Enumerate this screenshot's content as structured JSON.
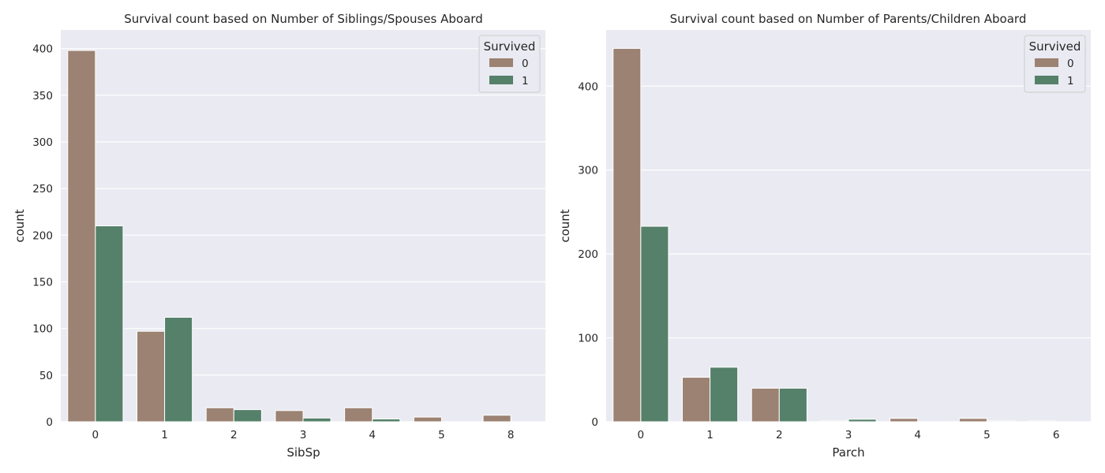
{
  "colors": {
    "survived_0": "#9c8272",
    "survived_1": "#55806a",
    "plot_bg": "#eaeaf2",
    "grid": "#ffffff"
  },
  "chart_data": [
    {
      "type": "bar",
      "title": "Survival count based on Number of Siblings/Spouses Aboard",
      "xlabel": "SibSp",
      "ylabel": "count",
      "categories": [
        "0",
        "1",
        "2",
        "3",
        "4",
        "5",
        "8"
      ],
      "series": [
        {
          "name": "0",
          "values": [
            398,
            97,
            15,
            12,
            15,
            5,
            7
          ]
        },
        {
          "name": "1",
          "values": [
            210,
            112,
            13,
            4,
            3,
            0,
            0
          ]
        }
      ],
      "ylim": [
        0,
        420
      ],
      "yticks": [
        0,
        50,
        100,
        150,
        200,
        250,
        300,
        350,
        400
      ],
      "grid": true,
      "legend": {
        "title": "Survived",
        "placement": "top-right"
      }
    },
    {
      "type": "bar",
      "title": "Survival count based on Number of Parents/Children Aboard",
      "xlabel": "Parch",
      "ylabel": "count",
      "categories": [
        "0",
        "1",
        "2",
        "3",
        "4",
        "5",
        "6"
      ],
      "series": [
        {
          "name": "0",
          "values": [
            445,
            53,
            40,
            1,
            4,
            4,
            1
          ]
        },
        {
          "name": "1",
          "values": [
            233,
            65,
            40,
            3,
            0,
            1,
            0
          ]
        }
      ],
      "ylim": [
        0,
        467
      ],
      "yticks": [
        0,
        100,
        200,
        300,
        400
      ],
      "grid": true,
      "legend": {
        "title": "Survived",
        "placement": "top-right"
      }
    }
  ]
}
